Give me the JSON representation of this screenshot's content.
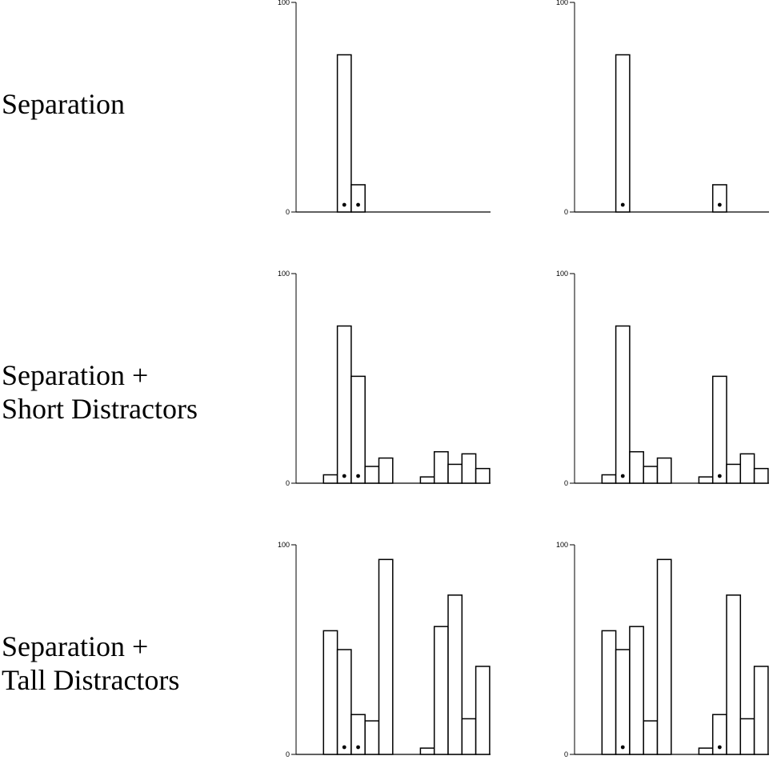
{
  "row_labels": [
    [
      "Separation"
    ],
    [
      "Separation +",
      "Short Distractors"
    ],
    [
      "Separation +",
      "Tall Distractors"
    ]
  ],
  "colors": {
    "bar_fill": "#ffffff",
    "bar_stroke": "#000000",
    "axis": "#000000",
    "dot": "#000000"
  },
  "chart_data": [
    {
      "type": "bar",
      "row": 0,
      "col": 0,
      "ylim": [
        0,
        100
      ],
      "yticks": [
        0,
        100
      ],
      "title": "",
      "xlabel": "",
      "ylabel": "",
      "values": [
        null,
        null,
        75,
        13,
        null,
        null,
        null,
        null,
        null,
        null,
        null,
        null,
        null,
        null
      ],
      "marked": [
        2,
        3
      ]
    },
    {
      "type": "bar",
      "row": 0,
      "col": 1,
      "ylim": [
        0,
        100
      ],
      "yticks": [
        0,
        100
      ],
      "title": "",
      "xlabel": "",
      "ylabel": "",
      "values": [
        null,
        null,
        75,
        null,
        null,
        null,
        null,
        null,
        null,
        13,
        null,
        null,
        null,
        null
      ],
      "marked": [
        2,
        9
      ]
    },
    {
      "type": "bar",
      "row": 1,
      "col": 0,
      "ylim": [
        0,
        100
      ],
      "yticks": [
        0,
        100
      ],
      "title": "",
      "xlabel": "",
      "ylabel": "",
      "values": [
        null,
        4,
        75,
        51,
        8,
        12,
        null,
        null,
        3,
        15,
        9,
        14,
        7,
        null
      ],
      "marked": [
        2,
        3
      ]
    },
    {
      "type": "bar",
      "row": 1,
      "col": 1,
      "ylim": [
        0,
        100
      ],
      "yticks": [
        0,
        100
      ],
      "title": "",
      "xlabel": "",
      "ylabel": "",
      "values": [
        null,
        4,
        75,
        15,
        8,
        12,
        null,
        null,
        3,
        51,
        9,
        14,
        7,
        null
      ],
      "marked": [
        2,
        9
      ]
    },
    {
      "type": "bar",
      "row": 2,
      "col": 0,
      "ylim": [
        0,
        100
      ],
      "yticks": [
        0,
        100
      ],
      "title": "",
      "xlabel": "",
      "ylabel": "",
      "values": [
        null,
        59,
        50,
        19,
        16,
        93,
        null,
        null,
        3,
        61,
        76,
        17,
        42,
        null
      ],
      "marked": [
        2,
        3
      ]
    },
    {
      "type": "bar",
      "row": 2,
      "col": 1,
      "ylim": [
        0,
        100
      ],
      "yticks": [
        0,
        100
      ],
      "title": "",
      "xlabel": "",
      "ylabel": "",
      "values": [
        null,
        59,
        50,
        61,
        16,
        93,
        null,
        null,
        3,
        19,
        76,
        17,
        42,
        null
      ],
      "marked": [
        2,
        9
      ]
    }
  ]
}
